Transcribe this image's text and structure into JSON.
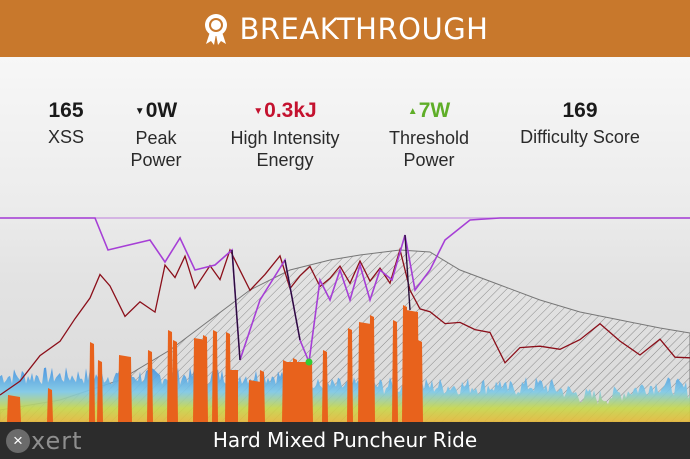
{
  "banner": {
    "title": "BREAKTHROUGH",
    "icon": "award-ribbon-icon",
    "color": "#c8782c"
  },
  "stats": [
    {
      "value": "165",
      "label": [
        "XSS"
      ],
      "trend": "none"
    },
    {
      "value": "0W",
      "label": [
        "Peak",
        "Power"
      ],
      "trend": "down-black"
    },
    {
      "value": "0.3kJ",
      "label": [
        "High Intensity",
        "Energy"
      ],
      "trend": "down"
    },
    {
      "value": "7W",
      "label": [
        "Threshold",
        "Power"
      ],
      "trend": "up"
    },
    {
      "value": "169",
      "label": [
        "Difficulty Score"
      ],
      "trend": "none"
    }
  ],
  "colors": {
    "down": "#c4122f",
    "up": "#5fae28",
    "power": "#8b0f1a",
    "mpa": "#a63fd6",
    "elevation": "#888888"
  },
  "footer": {
    "logo": "xert",
    "workout_title": "Hard Mixed Puncheur Ride"
  }
}
